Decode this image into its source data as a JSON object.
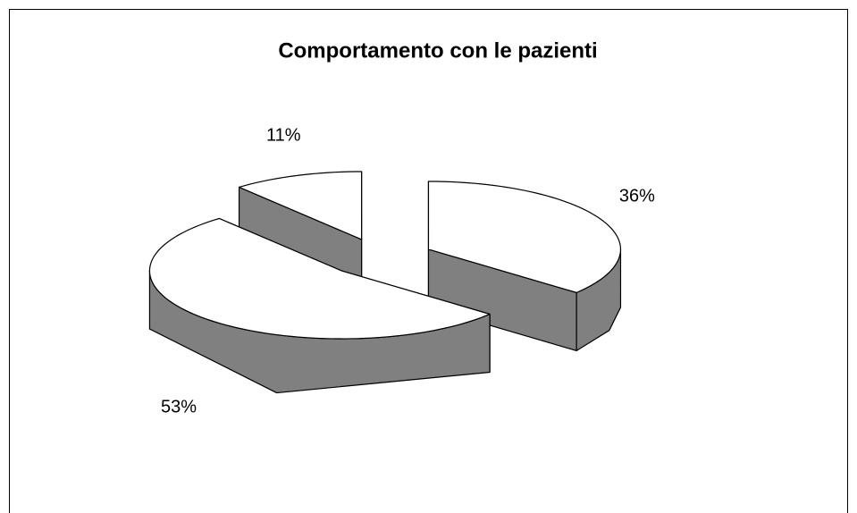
{
  "chart_data": {
    "type": "pie",
    "title": "Comportamento con le pazienti",
    "categories": [
      null,
      null,
      null
    ],
    "values": [
      36,
      53,
      11
    ],
    "value_labels": [
      "36%",
      "53%",
      "11%"
    ],
    "top_color": "#ffffff",
    "side_color": "#808080",
    "exploded": true
  }
}
